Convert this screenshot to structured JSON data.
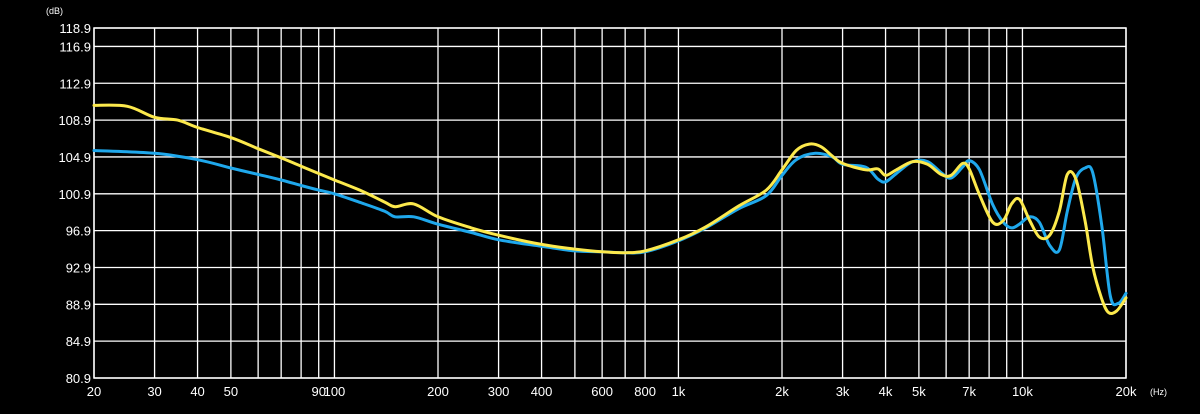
{
  "chart_data": {
    "type": "line",
    "title": "",
    "xlabel": "",
    "ylabel": "",
    "x_unit": "(Hz)",
    "y_unit": "(dB)",
    "x_scale": "log",
    "xlim": [
      20,
      20000
    ],
    "ylim": [
      80.9,
      118.9
    ],
    "grid": true,
    "y_ticks": [
      {
        "value": 118.9,
        "label": "118.9"
      },
      {
        "value": 116.9,
        "label": "116.9"
      },
      {
        "value": 112.9,
        "label": "112.9"
      },
      {
        "value": 108.9,
        "label": "108.9"
      },
      {
        "value": 104.9,
        "label": "104.9"
      },
      {
        "value": 100.9,
        "label": "100.9"
      },
      {
        "value": 96.9,
        "label": "96.9"
      },
      {
        "value": 92.9,
        "label": "92.9"
      },
      {
        "value": 88.9,
        "label": "88.9"
      },
      {
        "value": 84.9,
        "label": "84.9"
      },
      {
        "value": 80.9,
        "label": "80.9"
      }
    ],
    "x_ticks": [
      {
        "value": 20,
        "label": "20"
      },
      {
        "value": 30,
        "label": "30"
      },
      {
        "value": 40,
        "label": "40"
      },
      {
        "value": 50,
        "label": "50"
      },
      {
        "value": 90,
        "label": "90"
      },
      {
        "value": 100,
        "label": "100"
      },
      {
        "value": 200,
        "label": "200"
      },
      {
        "value": 300,
        "label": "300"
      },
      {
        "value": 400,
        "label": "400"
      },
      {
        "value": 600,
        "label": "600"
      },
      {
        "value": 800,
        "label": "800"
      },
      {
        "value": 1000,
        "label": "1k"
      },
      {
        "value": 2000,
        "label": "2k"
      },
      {
        "value": 3000,
        "label": "3k"
      },
      {
        "value": 4000,
        "label": "4k"
      },
      {
        "value": 5000,
        "label": "5k"
      },
      {
        "value": 7000,
        "label": "7k"
      },
      {
        "value": 10000,
        "label": "10k"
      },
      {
        "value": 20000,
        "label": "20k"
      }
    ],
    "grid_x": [
      20,
      30,
      40,
      50,
      60,
      70,
      80,
      90,
      100,
      200,
      300,
      400,
      500,
      600,
      700,
      800,
      1000,
      2000,
      3000,
      4000,
      5000,
      6000,
      7000,
      8000,
      9000,
      10000,
      20000
    ],
    "series": [
      {
        "color": "#1fa8ec",
        "points": [
          [
            20,
            105.6
          ],
          [
            30,
            105.3
          ],
          [
            40,
            104.6
          ],
          [
            50,
            103.7
          ],
          [
            60,
            103.0
          ],
          [
            70,
            102.4
          ],
          [
            80,
            101.8
          ],
          [
            90,
            101.3
          ],
          [
            100,
            100.9
          ],
          [
            120,
            99.9
          ],
          [
            140,
            99.0
          ],
          [
            150,
            98.4
          ],
          [
            170,
            98.4
          ],
          [
            200,
            97.6
          ],
          [
            250,
            96.7
          ],
          [
            300,
            95.9
          ],
          [
            400,
            95.2
          ],
          [
            500,
            94.7
          ],
          [
            600,
            94.6
          ],
          [
            700,
            94.5
          ],
          [
            800,
            94.6
          ],
          [
            1000,
            95.8
          ],
          [
            1200,
            97.2
          ],
          [
            1500,
            99.3
          ],
          [
            1800,
            100.7
          ],
          [
            2000,
            102.9
          ],
          [
            2200,
            104.6
          ],
          [
            2500,
            105.3
          ],
          [
            2800,
            104.9
          ],
          [
            3000,
            104.1
          ],
          [
            3500,
            103.8
          ],
          [
            3800,
            102.5
          ],
          [
            4000,
            102.2
          ],
          [
            4300,
            103.1
          ],
          [
            4800,
            104.4
          ],
          [
            5300,
            104.4
          ],
          [
            5800,
            103.2
          ],
          [
            6200,
            102.6
          ],
          [
            6700,
            103.8
          ],
          [
            7000,
            104.5
          ],
          [
            7500,
            103.5
          ],
          [
            8200,
            99.7
          ],
          [
            8800,
            97.8
          ],
          [
            9300,
            97.2
          ],
          [
            9800,
            97.6
          ],
          [
            10500,
            98.4
          ],
          [
            11200,
            97.8
          ],
          [
            12000,
            95.3
          ],
          [
            12800,
            94.8
          ],
          [
            13500,
            99.0
          ],
          [
            14300,
            102.6
          ],
          [
            15200,
            103.7
          ],
          [
            16000,
            103.2
          ],
          [
            17000,
            97.5
          ],
          [
            18000,
            89.8
          ],
          [
            19000,
            89.0
          ],
          [
            20000,
            90.1
          ]
        ]
      },
      {
        "color": "#fce94c",
        "points": [
          [
            20,
            110.5
          ],
          [
            25,
            110.4
          ],
          [
            30,
            109.2
          ],
          [
            35,
            108.9
          ],
          [
            40,
            108.1
          ],
          [
            50,
            107.0
          ],
          [
            60,
            105.8
          ],
          [
            70,
            104.8
          ],
          [
            80,
            103.9
          ],
          [
            90,
            103.1
          ],
          [
            100,
            102.4
          ],
          [
            120,
            101.2
          ],
          [
            140,
            100.0
          ],
          [
            150,
            99.5
          ],
          [
            170,
            99.8
          ],
          [
            200,
            98.4
          ],
          [
            250,
            97.2
          ],
          [
            300,
            96.4
          ],
          [
            400,
            95.4
          ],
          [
            500,
            94.9
          ],
          [
            600,
            94.6
          ],
          [
            700,
            94.5
          ],
          [
            800,
            94.7
          ],
          [
            1000,
            95.9
          ],
          [
            1200,
            97.3
          ],
          [
            1500,
            99.6
          ],
          [
            1800,
            101.3
          ],
          [
            2000,
            103.5
          ],
          [
            2200,
            105.6
          ],
          [
            2400,
            106.3
          ],
          [
            2600,
            106.0
          ],
          [
            2800,
            105.0
          ],
          [
            3000,
            104.2
          ],
          [
            3500,
            103.5
          ],
          [
            3800,
            103.6
          ],
          [
            4000,
            102.9
          ],
          [
            4300,
            103.5
          ],
          [
            4800,
            104.4
          ],
          [
            5300,
            104.1
          ],
          [
            5800,
            103.0
          ],
          [
            6200,
            102.9
          ],
          [
            6700,
            104.2
          ],
          [
            7000,
            103.6
          ],
          [
            7500,
            100.8
          ],
          [
            8200,
            97.8
          ],
          [
            8800,
            98.0
          ],
          [
            9300,
            99.8
          ],
          [
            9800,
            100.3
          ],
          [
            10500,
            98.0
          ],
          [
            11200,
            96.2
          ],
          [
            12000,
            96.4
          ],
          [
            12800,
            99.0
          ],
          [
            13500,
            103.0
          ],
          [
            14300,
            102.5
          ],
          [
            15200,
            98.0
          ],
          [
            16000,
            93.0
          ],
          [
            17000,
            89.5
          ],
          [
            17800,
            88.0
          ],
          [
            18800,
            88.2
          ],
          [
            20000,
            89.6
          ]
        ]
      }
    ]
  }
}
